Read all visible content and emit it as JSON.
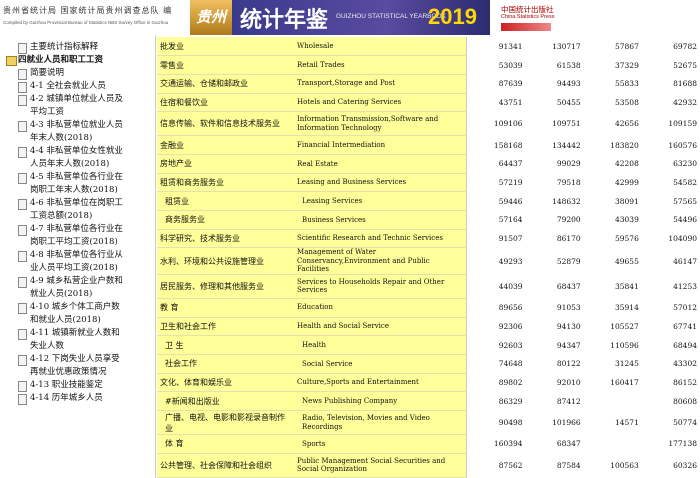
{
  "header": {
    "publisher_zh": "贵州省统计局 国家统计局贵州调查总队 编",
    "publisher_en": "Compiled by Guizhou Provincial Bureau of Statistics NBS Survey Office in Guizhou",
    "logo": "贵州",
    "title_zh": "统计年鉴",
    "title_en": "GUIZHOU STATISTICAL YEARBOOK",
    "year": "2019",
    "press_zh": "中国统计出版社",
    "press_en": "China Statistics Press"
  },
  "nav": {
    "items": [
      "主要统计指标解释",
      "四就业人员和职工工资",
      "简要说明",
      "4-1 全社会就业人员",
      "4-2 城镇单位就业人员及平均工资",
      "4-3 非私营单位就业人员年末人数(2018)",
      "4-4 非私营单位女性就业人员年末人数(2018)",
      "4-5 非私营单位各行业在岗职工年末人数(2018)",
      "4-6 非私营单位在岗职工工资总额(2018)",
      "4-7 非私营单位各行业在岗职工平均工资(2018)",
      "4-8 非私营单位各行业从业人员平均工资(2018)",
      "4-9 城乡私营企业户数和就业人员(2018)",
      "4-10 城乡个体工商户数和就业人员(2018)",
      "4-11 城镇新就业人数和失业人数",
      "4-12 下岗失业人员享受再就业优惠政策情况",
      "4-13 职业技能鉴定",
      "4-14 历年城乡人员"
    ]
  },
  "table": {
    "rows": [
      [
        "批发业",
        "Wholesale",
        91341,
        130717,
        57867,
        69782
      ],
      [
        "零售业",
        "Retail Trades",
        53039,
        61538,
        37329,
        52675
      ],
      [
        "交通运输、仓储和邮政业",
        "Transport,Storage and Post",
        87639,
        94493,
        55833,
        81688
      ],
      [
        "住宿和餐饮业",
        "Hotels and Catering Services",
        43751,
        50455,
        53508,
        42932
      ],
      [
        "信息传输、软件和信息技术服务业",
        "Information Transmission,Software and Information Technology",
        109106,
        109751,
        42656,
        109159
      ],
      [
        "金融业",
        "Financial Intermediation",
        158168,
        134442,
        183820,
        160576
      ],
      [
        "房地产业",
        "Real Estate",
        64437,
        99029,
        42208,
        63230
      ],
      [
        "租赁和商务服务业",
        "Leasing and Business Services",
        57219,
        79518,
        42999,
        54582
      ],
      [
        "租赁业",
        "Leasing Services",
        59446,
        148632,
        38091,
        57565
      ],
      [
        "商务服务业",
        "Business Services",
        57164,
        79200,
        43039,
        54496
      ],
      [
        "科学研究、技术服务业",
        "Scientific Research and Technic Services",
        91507,
        86170,
        59576,
        104090
      ],
      [
        "水利、环境和公共设施管理业",
        "Management of Water Conservancy,Environment and Public Facilities",
        49293,
        52879,
        49655,
        46147
      ],
      [
        "居民服务、修理和其他服务业",
        "Services to Households Repair and Other Services",
        44039,
        68437,
        35841,
        41253
      ],
      [
        "教 育",
        "Education",
        89656,
        91053,
        35914,
        57012
      ],
      [
        "卫生和社会工作",
        "Health and Social Service",
        92306,
        94130,
        105527,
        67741
      ],
      [
        "卫 生",
        "Health",
        92603,
        94347,
        110596,
        68494
      ],
      [
        "社会工作",
        "Social Service",
        74648,
        80122,
        31245,
        43302
      ],
      [
        "文化、体育和娱乐业",
        "Culture,Sports and Entertainment",
        89802,
        92010,
        160417,
        86152
      ],
      [
        "#新闻和出版业",
        "News Publishing Company",
        86329,
        87412,
        null,
        80608
      ],
      [
        "广播、电视、电影和影视录音制作业",
        "Radio, Television, Movies and Video Recordings",
        90498,
        101966,
        14571,
        50774
      ],
      [
        "体 育",
        "Sports",
        160394,
        68347,
        null,
        177138
      ],
      [
        "公共管理、社会保障和社会组织",
        "Public Management Social Securities and Social Organization",
        87562,
        87584,
        100563,
        60326
      ]
    ]
  }
}
